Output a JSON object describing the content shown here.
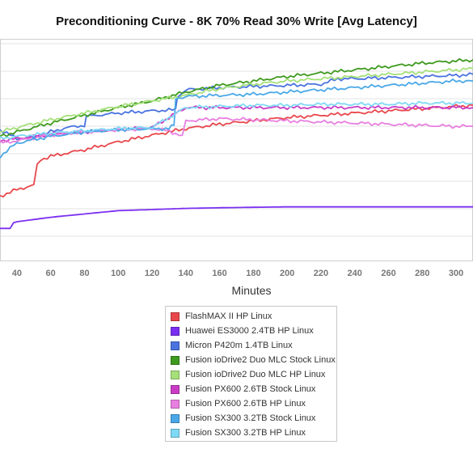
{
  "chart_data": {
    "type": "line",
    "title": "Preconditioning Curve - 8K 70% Read 30% Write [Avg Latency]",
    "xlabel": "Minutes",
    "ylabel": "",
    "xticks": [
      40,
      60,
      80,
      100,
      120,
      140,
      160,
      180,
      200,
      220,
      240,
      260,
      280,
      300
    ],
    "xlim": [
      30,
      310
    ],
    "ylim": [
      0,
      10
    ],
    "grid": true,
    "legend_position": "bottom",
    "series": [
      {
        "name": "FlashMAX II HP Linux",
        "color": "#e8474c",
        "x": [
          30,
          40,
          50,
          52,
          54,
          60,
          80,
          100,
          120,
          140,
          160,
          180,
          200,
          220,
          240,
          260,
          280,
          300,
          310
        ],
        "y": [
          2.9,
          3.2,
          3.4,
          4.3,
          4.55,
          4.7,
          5.0,
          5.35,
          5.65,
          5.95,
          6.15,
          6.3,
          6.45,
          6.55,
          6.65,
          6.75,
          6.85,
          6.95,
          7.0
        ]
      },
      {
        "name": "Huawei ES3000 2.4TB HP Linux",
        "color": "#7b2ff0",
        "x": [
          30,
          36,
          38,
          40,
          60,
          80,
          100,
          120,
          140,
          160,
          180,
          200,
          220,
          240,
          260,
          280,
          300,
          310
        ],
        "y": [
          1.45,
          1.45,
          1.7,
          1.75,
          1.95,
          2.1,
          2.25,
          2.3,
          2.35,
          2.38,
          2.4,
          2.42,
          2.42,
          2.42,
          2.42,
          2.42,
          2.42,
          2.42
        ]
      },
      {
        "name": "Micron P420m 1.4TB Linux",
        "color": "#4a73e0",
        "x": [
          30,
          40,
          50,
          60,
          70,
          80,
          81,
          100,
          120,
          134,
          135,
          140,
          160,
          180,
          200,
          220,
          230,
          240,
          260,
          280,
          300,
          310
        ],
        "y": [
          5.9,
          5.5,
          5.55,
          5.8,
          6.0,
          6.1,
          6.5,
          6.65,
          6.75,
          6.8,
          7.4,
          7.7,
          7.8,
          7.85,
          7.9,
          7.95,
          8.2,
          8.2,
          8.25,
          8.3,
          8.35,
          8.4
        ]
      },
      {
        "name": "Fusion ioDrive2 Duo MLC Stock Linux",
        "color": "#3e9a1e",
        "x": [
          30,
          40,
          60,
          80,
          100,
          120,
          140,
          160,
          180,
          200,
          220,
          240,
          260,
          280,
          300,
          310
        ],
        "y": [
          5.6,
          5.8,
          6.2,
          6.55,
          6.9,
          7.2,
          7.6,
          7.9,
          8.1,
          8.3,
          8.45,
          8.6,
          8.75,
          8.9,
          9.0,
          9.05
        ]
      },
      {
        "name": "Fusion ioDrive2 Duo MLC HP Linux",
        "color": "#a6e07a",
        "x": [
          30,
          40,
          60,
          80,
          100,
          120,
          140,
          160,
          180,
          200,
          220,
          240,
          260,
          280,
          300,
          310
        ],
        "y": [
          5.8,
          6.0,
          6.35,
          6.65,
          6.95,
          7.2,
          7.45,
          7.75,
          7.95,
          8.1,
          8.2,
          8.3,
          8.4,
          8.5,
          8.6,
          8.65
        ]
      },
      {
        "name": "Fusion PX600 2.6TB Stock Linux",
        "color": "#c93bc4",
        "x": [
          30,
          40,
          60,
          80,
          100,
          120,
          140,
          160,
          180,
          200,
          220,
          240,
          260,
          280,
          300,
          310
        ],
        "y": [
          5.4,
          5.5,
          5.7,
          5.8,
          5.9,
          6.0,
          6.9,
          6.9,
          6.9,
          6.9,
          6.9,
          6.9,
          6.9,
          6.9,
          6.9,
          6.9
        ]
      },
      {
        "name": "Fusion PX600 2.6TB HP Linux",
        "color": "#e87fe0",
        "x": [
          30,
          40,
          60,
          80,
          100,
          120,
          130,
          138,
          140,
          160,
          180,
          200,
          220,
          240,
          260,
          280,
          300,
          310
        ],
        "y": [
          5.3,
          5.4,
          5.65,
          5.8,
          5.9,
          5.95,
          5.85,
          5.6,
          6.3,
          6.4,
          6.35,
          6.3,
          6.25,
          6.2,
          6.15,
          6.1,
          6.05,
          6.05
        ]
      },
      {
        "name": "Fusion SX300 3.2TB Stock Linux",
        "color": "#4aa8e8",
        "x": [
          30,
          40,
          60,
          80,
          100,
          120,
          130,
          133,
          134,
          140,
          160,
          180,
          200,
          220,
          240,
          260,
          280,
          300,
          310
        ],
        "y": [
          4.7,
          5.3,
          5.6,
          5.8,
          5.9,
          5.95,
          5.95,
          6.1,
          7.3,
          7.4,
          7.45,
          7.5,
          7.6,
          7.7,
          7.8,
          7.9,
          8.0,
          8.1,
          8.1
        ]
      },
      {
        "name": "Fusion SX300 3.2TB HP Linux",
        "color": "#7fd9f5",
        "x": [
          30,
          40,
          60,
          80,
          100,
          120,
          140,
          160,
          180,
          200,
          220,
          240,
          260,
          280,
          300,
          310
        ],
        "y": [
          5.5,
          5.6,
          5.75,
          5.85,
          5.95,
          6.0,
          6.9,
          6.95,
          7.0,
          7.0,
          7.05,
          7.05,
          7.05,
          7.1,
          7.1,
          7.1
        ]
      }
    ]
  }
}
